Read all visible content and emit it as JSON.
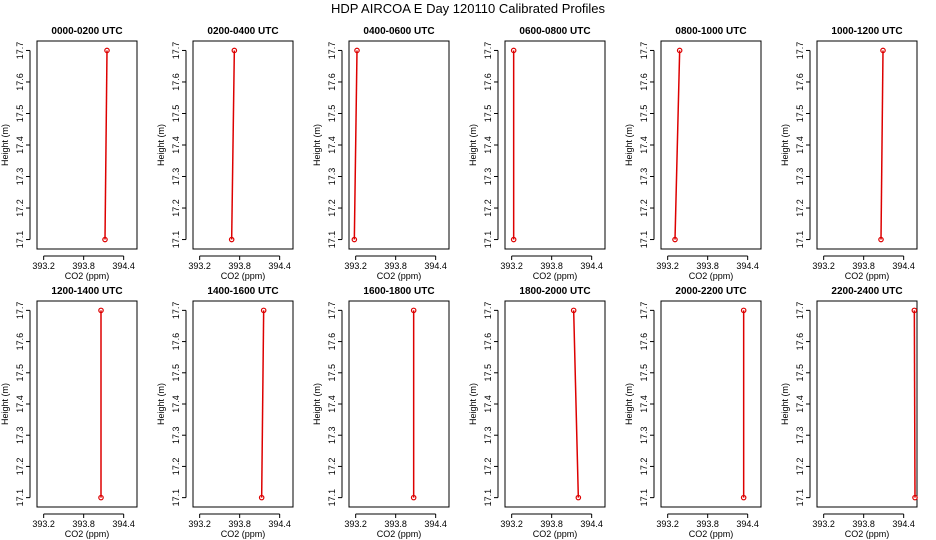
{
  "figure": {
    "title": "HDP AIRCOA E  Day 120110  Calibrated Profiles",
    "colors": {
      "series": "#dd0000",
      "axes": "#000000",
      "background": "#ffffff"
    }
  },
  "chart_data": [
    {
      "type": "line",
      "title": "0000-0200 UTC",
      "xlabel": "CO2 (ppm)",
      "ylabel": "Height (m)",
      "xlim": [
        393.1,
        394.6
      ],
      "ylim": [
        17.07,
        17.73
      ],
      "xticks": [
        "393.2",
        "393.8",
        "394.4"
      ],
      "yticks": [
        "17.1",
        "17.2",
        "17.3",
        "17.4",
        "17.5",
        "17.6",
        "17.7"
      ],
      "series": [
        {
          "x": [
            394.12,
            394.15
          ],
          "y": [
            17.1,
            17.7
          ]
        }
      ]
    },
    {
      "type": "line",
      "title": "0200-0400 UTC",
      "xlabel": "CO2 (ppm)",
      "ylabel": "Height (m)",
      "xlim": [
        393.1,
        394.6
      ],
      "ylim": [
        17.07,
        17.73
      ],
      "xticks": [
        "393.2",
        "393.8",
        "394.4"
      ],
      "yticks": [
        "17.1",
        "17.2",
        "17.3",
        "17.4",
        "17.5",
        "17.6",
        "17.7"
      ],
      "series": [
        {
          "x": [
            393.68,
            393.72
          ],
          "y": [
            17.1,
            17.7
          ]
        }
      ]
    },
    {
      "type": "line",
      "title": "0400-0600 UTC",
      "xlabel": "CO2 (ppm)",
      "ylabel": "Height (m)",
      "xlim": [
        393.1,
        394.6
      ],
      "ylim": [
        17.07,
        17.73
      ],
      "xticks": [
        "393.2",
        "393.8",
        "394.4"
      ],
      "yticks": [
        "17.1",
        "17.2",
        "17.3",
        "17.4",
        "17.5",
        "17.6",
        "17.7"
      ],
      "series": [
        {
          "x": [
            393.18,
            393.22
          ],
          "y": [
            17.1,
            17.7
          ]
        }
      ]
    },
    {
      "type": "line",
      "title": "0600-0800 UTC",
      "xlabel": "CO2 (ppm)",
      "ylabel": "Height (m)",
      "xlim": [
        393.1,
        394.6
      ],
      "ylim": [
        17.07,
        17.73
      ],
      "xticks": [
        "393.2",
        "393.8",
        "394.4"
      ],
      "yticks": [
        "17.1",
        "17.2",
        "17.3",
        "17.4",
        "17.5",
        "17.6",
        "17.7"
      ],
      "series": [
        {
          "x": [
            393.23,
            393.23
          ],
          "y": [
            17.1,
            17.7
          ]
        }
      ]
    },
    {
      "type": "line",
      "title": "0800-1000 UTC",
      "xlabel": "CO2 (ppm)",
      "ylabel": "Height (m)",
      "xlim": [
        393.1,
        394.6
      ],
      "ylim": [
        17.07,
        17.73
      ],
      "xticks": [
        "393.2",
        "393.8",
        "394.4"
      ],
      "yticks": [
        "17.1",
        "17.2",
        "17.3",
        "17.4",
        "17.5",
        "17.6",
        "17.7"
      ],
      "series": [
        {
          "x": [
            393.31,
            393.38
          ],
          "y": [
            17.1,
            17.7
          ]
        }
      ]
    },
    {
      "type": "line",
      "title": "1000-1200 UTC",
      "xlabel": "CO2 (ppm)",
      "ylabel": "Height (m)",
      "xlim": [
        393.1,
        394.6
      ],
      "ylim": [
        17.07,
        17.73
      ],
      "xticks": [
        "393.2",
        "393.8",
        "394.4"
      ],
      "yticks": [
        "17.1",
        "17.2",
        "17.3",
        "17.4",
        "17.5",
        "17.6",
        "17.7"
      ],
      "series": [
        {
          "x": [
            394.06,
            394.09
          ],
          "y": [
            17.1,
            17.7
          ]
        }
      ]
    },
    {
      "type": "line",
      "title": "1200-1400 UTC",
      "xlabel": "CO2 (ppm)",
      "ylabel": "Height (m)",
      "xlim": [
        393.1,
        394.6
      ],
      "ylim": [
        17.07,
        17.73
      ],
      "xticks": [
        "393.2",
        "393.8",
        "394.4"
      ],
      "yticks": [
        "17.1",
        "17.2",
        "17.3",
        "17.4",
        "17.5",
        "17.6",
        "17.7"
      ],
      "series": [
        {
          "x": [
            394.06,
            394.06
          ],
          "y": [
            17.1,
            17.7
          ]
        }
      ]
    },
    {
      "type": "line",
      "title": "1400-1600 UTC",
      "xlabel": "CO2 (ppm)",
      "ylabel": "Height (m)",
      "xlim": [
        393.1,
        394.6
      ],
      "ylim": [
        17.07,
        17.73
      ],
      "xticks": [
        "393.2",
        "393.8",
        "394.4"
      ],
      "yticks": [
        "17.1",
        "17.2",
        "17.3",
        "17.4",
        "17.5",
        "17.6",
        "17.7"
      ],
      "series": [
        {
          "x": [
            394.13,
            394.16
          ],
          "y": [
            17.1,
            17.7
          ]
        }
      ]
    },
    {
      "type": "line",
      "title": "1600-1800 UTC",
      "xlabel": "CO2 (ppm)",
      "ylabel": "Height (m)",
      "xlim": [
        393.1,
        394.6
      ],
      "ylim": [
        17.07,
        17.73
      ],
      "xticks": [
        "393.2",
        "393.8",
        "394.4"
      ],
      "yticks": [
        "17.1",
        "17.2",
        "17.3",
        "17.4",
        "17.5",
        "17.6",
        "17.7"
      ],
      "series": [
        {
          "x": [
            394.07,
            394.07
          ],
          "y": [
            17.1,
            17.7
          ]
        }
      ]
    },
    {
      "type": "line",
      "title": "1800-2000 UTC",
      "xlabel": "CO2 (ppm)",
      "ylabel": "Height (m)",
      "xlim": [
        393.1,
        394.6
      ],
      "ylim": [
        17.07,
        17.73
      ],
      "xticks": [
        "393.2",
        "393.8",
        "394.4"
      ],
      "yticks": [
        "17.1",
        "17.2",
        "17.3",
        "17.4",
        "17.5",
        "17.6",
        "17.7"
      ],
      "series": [
        {
          "x": [
            394.2,
            394.13
          ],
          "y": [
            17.1,
            17.7
          ]
        }
      ]
    },
    {
      "type": "line",
      "title": "2000-2200 UTC",
      "xlabel": "CO2 (ppm)",
      "ylabel": "Height (m)",
      "xlim": [
        393.1,
        394.6
      ],
      "ylim": [
        17.07,
        17.73
      ],
      "xticks": [
        "393.2",
        "393.8",
        "394.4"
      ],
      "yticks": [
        "17.1",
        "17.2",
        "17.3",
        "17.4",
        "17.5",
        "17.6",
        "17.7"
      ],
      "series": [
        {
          "x": [
            394.34,
            394.34
          ],
          "y": [
            17.1,
            17.7
          ]
        }
      ]
    },
    {
      "type": "line",
      "title": "2200-2400 UTC",
      "xlabel": "CO2 (ppm)",
      "ylabel": "Height (m)",
      "xlim": [
        393.1,
        394.6
      ],
      "ylim": [
        17.07,
        17.73
      ],
      "xticks": [
        "393.2",
        "393.8",
        "394.4"
      ],
      "yticks": [
        "17.1",
        "17.2",
        "17.3",
        "17.4",
        "17.5",
        "17.6",
        "17.7"
      ],
      "series": [
        {
          "x": [
            394.57,
            394.56
          ],
          "y": [
            17.1,
            17.7
          ]
        }
      ]
    }
  ]
}
